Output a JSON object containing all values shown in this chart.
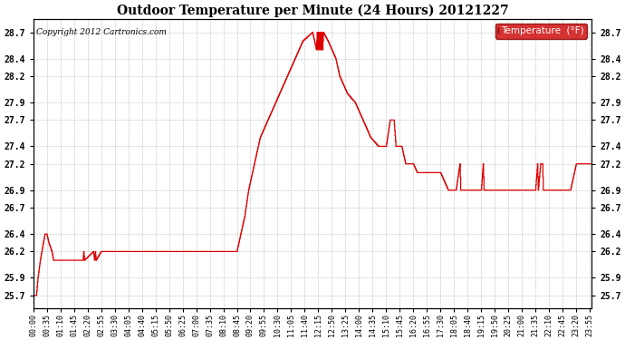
{
  "title": "Outdoor Temperature per Minute (24 Hours) 20121227",
  "copyright_text": "Copyright 2012 Cartronics.com",
  "legend_label": "Temperature  (°F)",
  "line_color": "#dd0000",
  "background_color": "#ffffff",
  "grid_color": "#aaaaaa",
  "legend_bg": "#cc0000",
  "legend_fg": "#ffffff",
  "yticks": [
    25.7,
    25.9,
    26.2,
    26.4,
    26.7,
    26.9,
    27.2,
    27.4,
    27.7,
    27.9,
    28.2,
    28.4,
    28.7
  ],
  "x_tick_labels": [
    "00:00",
    "00:35",
    "01:10",
    "01:45",
    "02:20",
    "02:55",
    "03:30",
    "04:05",
    "04:40",
    "05:15",
    "05:50",
    "06:25",
    "07:00",
    "07:35",
    "08:10",
    "08:45",
    "09:20",
    "09:55",
    "10:30",
    "11:05",
    "11:40",
    "12:15",
    "12:50",
    "13:25",
    "14:00",
    "14:35",
    "15:10",
    "15:45",
    "16:20",
    "16:55",
    "17:30",
    "18:05",
    "18:40",
    "19:15",
    "19:50",
    "20:25",
    "21:00",
    "21:35",
    "22:10",
    "22:45",
    "23:20",
    "23:55"
  ],
  "key_points": [
    [
      0,
      25.7
    ],
    [
      8,
      25.7
    ],
    [
      12,
      25.9
    ],
    [
      18,
      26.1
    ],
    [
      22,
      26.2
    ],
    [
      26,
      26.3
    ],
    [
      30,
      26.4
    ],
    [
      35,
      26.4
    ],
    [
      40,
      26.3
    ],
    [
      48,
      26.2
    ],
    [
      52,
      26.1
    ],
    [
      70,
      26.1
    ],
    [
      75,
      26.1
    ],
    [
      128,
      26.1
    ],
    [
      130,
      26.2
    ],
    [
      132,
      26.1
    ],
    [
      155,
      26.2
    ],
    [
      158,
      26.1
    ],
    [
      160,
      26.2
    ],
    [
      162,
      26.1
    ],
    [
      175,
      26.2
    ],
    [
      205,
      26.2
    ],
    [
      208,
      26.2
    ],
    [
      210,
      26.2
    ],
    [
      250,
      26.2
    ],
    [
      350,
      26.2
    ],
    [
      450,
      26.2
    ],
    [
      520,
      26.2
    ],
    [
      525,
      26.2
    ],
    [
      535,
      26.4
    ],
    [
      545,
      26.6
    ],
    [
      555,
      26.9
    ],
    [
      565,
      27.1
    ],
    [
      575,
      27.3
    ],
    [
      585,
      27.5
    ],
    [
      595,
      27.6
    ],
    [
      605,
      27.7
    ],
    [
      615,
      27.8
    ],
    [
      625,
      27.9
    ],
    [
      635,
      28.0
    ],
    [
      645,
      28.1
    ],
    [
      655,
      28.2
    ],
    [
      665,
      28.3
    ],
    [
      675,
      28.4
    ],
    [
      685,
      28.5
    ],
    [
      695,
      28.6
    ],
    [
      720,
      28.7
    ],
    [
      730,
      28.5
    ],
    [
      732,
      28.7
    ],
    [
      734,
      28.5
    ],
    [
      736,
      28.7
    ],
    [
      738,
      28.5
    ],
    [
      740,
      28.7
    ],
    [
      742,
      28.5
    ],
    [
      744,
      28.7
    ],
    [
      746,
      28.5
    ],
    [
      748,
      28.7
    ],
    [
      760,
      28.6
    ],
    [
      770,
      28.5
    ],
    [
      780,
      28.4
    ],
    [
      790,
      28.2
    ],
    [
      810,
      28.0
    ],
    [
      830,
      27.9
    ],
    [
      850,
      27.7
    ],
    [
      870,
      27.5
    ],
    [
      890,
      27.4
    ],
    [
      910,
      27.4
    ],
    [
      920,
      27.7
    ],
    [
      925,
      27.7
    ],
    [
      930,
      27.7
    ],
    [
      935,
      27.4
    ],
    [
      950,
      27.4
    ],
    [
      960,
      27.2
    ],
    [
      970,
      27.2
    ],
    [
      980,
      27.2
    ],
    [
      990,
      27.1
    ],
    [
      1000,
      27.1
    ],
    [
      1020,
      27.1
    ],
    [
      1050,
      27.1
    ],
    [
      1070,
      26.9
    ],
    [
      1075,
      26.9
    ],
    [
      1090,
      26.9
    ],
    [
      1100,
      27.2
    ],
    [
      1102,
      26.9
    ],
    [
      1115,
      26.9
    ],
    [
      1155,
      26.9
    ],
    [
      1160,
      27.2
    ],
    [
      1162,
      26.9
    ],
    [
      1170,
      26.9
    ],
    [
      1295,
      26.9
    ],
    [
      1300,
      27.2
    ],
    [
      1302,
      26.9
    ],
    [
      1308,
      27.2
    ],
    [
      1313,
      27.2
    ],
    [
      1315,
      26.9
    ],
    [
      1330,
      26.9
    ],
    [
      1370,
      26.9
    ],
    [
      1372,
      26.9
    ],
    [
      1385,
      26.9
    ],
    [
      1400,
      27.2
    ],
    [
      1440,
      27.2
    ]
  ]
}
